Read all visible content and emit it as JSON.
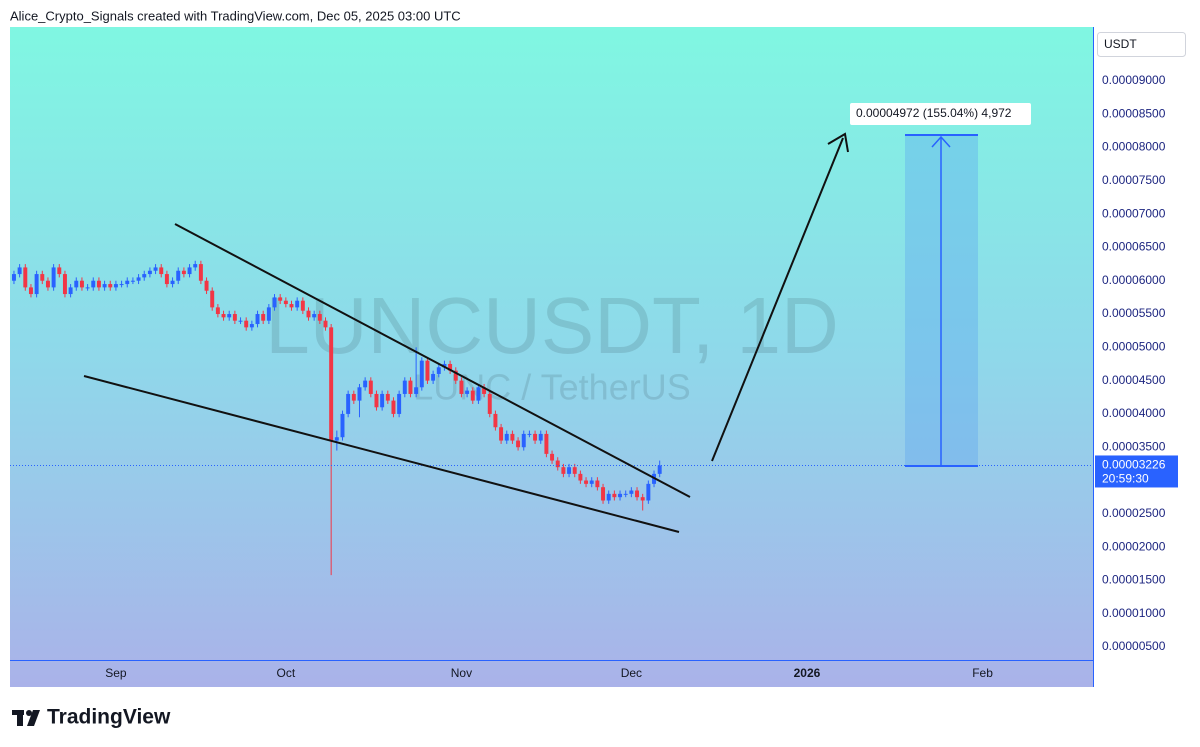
{
  "header": {
    "text": "Alice_Crypto_Signals created with TradingView.com, Dec 05, 2025 03:00 UTC"
  },
  "footer": {
    "brand": "TradingView"
  },
  "chart_data": {
    "type": "candlestick",
    "symbol": "LUNCUSDT, 1D",
    "description": "LUNC / TetherUS",
    "currency": "USDT",
    "up_color": "#2962ff",
    "down_color": "#f23645",
    "grid": false,
    "candles": [
      [
        6e-05,
        6.15e-05,
        5.95e-05,
        6.1e-05
      ],
      [
        6.1e-05,
        6.25e-05,
        6.05e-05,
        6.2e-05
      ],
      [
        6.2e-05,
        6.25e-05,
        5.85e-05,
        5.9e-05
      ],
      [
        5.9e-05,
        5.95e-05,
        5.75e-05,
        5.8e-05
      ],
      [
        5.8e-05,
        6.15e-05,
        5.75e-05,
        6.1e-05
      ],
      [
        6.1e-05,
        6.15e-05,
        5.95e-05,
        6e-05
      ],
      [
        6e-05,
        6.05e-05,
        5.85e-05,
        5.9e-05
      ],
      [
        5.9e-05,
        6.25e-05,
        5.85e-05,
        6.2e-05
      ],
      [
        6.2e-05,
        6.25e-05,
        6.05e-05,
        6.1e-05
      ],
      [
        6.1e-05,
        6.15e-05,
        5.75e-05,
        5.8e-05
      ],
      [
        5.8e-05,
        5.95e-05,
        5.75e-05,
        5.9e-05
      ],
      [
        5.9e-05,
        6.05e-05,
        5.85e-05,
        6e-05
      ],
      [
        6e-05,
        6.05e-05,
        5.85e-05,
        5.9e-05
      ],
      [
        5.9e-05,
        5.95e-05,
        5.85e-05,
        5.9e-05
      ],
      [
        5.9e-05,
        6.05e-05,
        5.85e-05,
        6e-05
      ],
      [
        6e-05,
        6.05e-05,
        5.85e-05,
        5.9e-05
      ],
      [
        5.9e-05,
        6e-05,
        5.85e-05,
        5.95e-05
      ],
      [
        5.95e-05,
        6e-05,
        5.85e-05,
        5.9e-05
      ],
      [
        5.9e-05,
        6e-05,
        5.85e-05,
        5.95e-05
      ],
      [
        5.95e-05,
        6e-05,
        5.9e-05,
        5.95e-05
      ],
      [
        5.95e-05,
        6.05e-05,
        5.9e-05,
        6e-05
      ],
      [
        6e-05,
        6.05e-05,
        5.95e-05,
        6e-05
      ],
      [
        6e-05,
        6.1e-05,
        5.95e-05,
        6.05e-05
      ],
      [
        6.05e-05,
        6.15e-05,
        6e-05,
        6.1e-05
      ],
      [
        6.1e-05,
        6.2e-05,
        6.05e-05,
        6.15e-05
      ],
      [
        6.15e-05,
        6.25e-05,
        6.1e-05,
        6.2e-05
      ],
      [
        6.2e-05,
        6.25e-05,
        6.05e-05,
        6.1e-05
      ],
      [
        6.1e-05,
        6.15e-05,
        5.9e-05,
        5.95e-05
      ],
      [
        5.95e-05,
        6.05e-05,
        5.9e-05,
        6e-05
      ],
      [
        6e-05,
        6.2e-05,
        5.95e-05,
        6.15e-05
      ],
      [
        6.15e-05,
        6.2e-05,
        6.05e-05,
        6.1e-05
      ],
      [
        6.1e-05,
        6.25e-05,
        6.05e-05,
        6.2e-05
      ],
      [
        6.2e-05,
        6.3e-05,
        6.15e-05,
        6.25e-05
      ],
      [
        6.25e-05,
        6.3e-05,
        5.95e-05,
        6e-05
      ],
      [
        6e-05,
        6.05e-05,
        5.8e-05,
        5.85e-05
      ],
      [
        5.85e-05,
        5.9e-05,
        5.55e-05,
        5.6e-05
      ],
      [
        5.6e-05,
        5.65e-05,
        5.45e-05,
        5.5e-05
      ],
      [
        5.5e-05,
        5.55e-05,
        5.4e-05,
        5.45e-05
      ],
      [
        5.45e-05,
        5.55e-05,
        5.4e-05,
        5.5e-05
      ],
      [
        5.5e-05,
        5.55e-05,
        5.35e-05,
        5.4e-05
      ],
      [
        5.4e-05,
        5.45e-05,
        5.35e-05,
        5.4e-05
      ],
      [
        5.4e-05,
        5.45e-05,
        5.25e-05,
        5.3e-05
      ],
      [
        5.3e-05,
        5.4e-05,
        5.25e-05,
        5.35e-05
      ],
      [
        5.35e-05,
        5.55e-05,
        5.3e-05,
        5.5e-05
      ],
      [
        5.5e-05,
        5.55e-05,
        5.35e-05,
        5.4e-05
      ],
      [
        5.4e-05,
        5.65e-05,
        5.35e-05,
        5.6e-05
      ],
      [
        5.6e-05,
        5.8e-05,
        5.55e-05,
        5.75e-05
      ],
      [
        5.75e-05,
        5.8e-05,
        5.65e-05,
        5.7e-05
      ],
      [
        5.7e-05,
        5.75e-05,
        5.6e-05,
        5.65e-05
      ],
      [
        5.65e-05,
        5.7e-05,
        5.55e-05,
        5.6e-05
      ],
      [
        5.6e-05,
        5.75e-05,
        5.55e-05,
        5.7e-05
      ],
      [
        5.7e-05,
        5.75e-05,
        5.5e-05,
        5.55e-05
      ],
      [
        5.55e-05,
        5.6e-05,
        5.4e-05,
        5.45e-05
      ],
      [
        5.45e-05,
        5.55e-05,
        5.4e-05,
        5.5e-05
      ],
      [
        5.5e-05,
        5.55e-05,
        5.35e-05,
        5.4e-05
      ],
      [
        5.4e-05,
        5.45e-05,
        5.25e-05,
        5.3e-05
      ],
      [
        5.3e-05,
        5.35e-05,
        1.58e-05,
        3.6e-05
      ],
      [
        3.6e-05,
        3.75e-05,
        3.45e-05,
        3.65e-05
      ],
      [
        3.65e-05,
        4.05e-05,
        3.6e-05,
        4e-05
      ],
      [
        4e-05,
        4.35e-05,
        3.95e-05,
        4.3e-05
      ],
      [
        4.3e-05,
        4.35e-05,
        4.15e-05,
        4.2e-05
      ],
      [
        4.2e-05,
        4.45e-05,
        3.95e-05,
        4.4e-05
      ],
      [
        4.4e-05,
        4.55e-05,
        4.35e-05,
        4.5e-05
      ],
      [
        4.5e-05,
        4.55e-05,
        4.25e-05,
        4.3e-05
      ],
      [
        4.3e-05,
        4.35e-05,
        4.05e-05,
        4.1e-05
      ],
      [
        4.1e-05,
        4.35e-05,
        4.05e-05,
        4.3e-05
      ],
      [
        4.3e-05,
        4.35e-05,
        4.15e-05,
        4.2e-05
      ],
      [
        4.2e-05,
        4.25e-05,
        3.95e-05,
        4e-05
      ],
      [
        4e-05,
        4.35e-05,
        3.95e-05,
        4.3e-05
      ],
      [
        4.3e-05,
        4.55e-05,
        4.25e-05,
        4.5e-05
      ],
      [
        4.5e-05,
        4.55e-05,
        4.25e-05,
        4.3e-05
      ],
      [
        4.3e-05,
        5e-05,
        4.25e-05,
        4.4e-05
      ],
      [
        4.4e-05,
        4.85e-05,
        4.35e-05,
        4.8e-05
      ],
      [
        4.8e-05,
        4.85e-05,
        4.45e-05,
        4.5e-05
      ],
      [
        4.5e-05,
        4.65e-05,
        4.45e-05,
        4.6e-05
      ],
      [
        4.6e-05,
        4.75e-05,
        4.55e-05,
        4.7e-05
      ],
      [
        4.7e-05,
        4.8e-05,
        4.65e-05,
        4.75e-05
      ],
      [
        4.75e-05,
        4.8e-05,
        4.6e-05,
        4.65e-05
      ],
      [
        4.65e-05,
        4.7e-05,
        4.45e-05,
        4.5e-05
      ],
      [
        4.5e-05,
        4.55e-05,
        4.25e-05,
        4.3e-05
      ],
      [
        4.3e-05,
        4.4e-05,
        4.25e-05,
        4.35e-05
      ],
      [
        4.35e-05,
        4.4e-05,
        4.15e-05,
        4.2e-05
      ],
      [
        4.2e-05,
        4.45e-05,
        4.15e-05,
        4.4e-05
      ],
      [
        4.4e-05,
        4.45e-05,
        4.25e-05,
        4.3e-05
      ],
      [
        4.3e-05,
        4.35e-05,
        3.95e-05,
        4e-05
      ],
      [
        4e-05,
        4.05e-05,
        3.75e-05,
        3.8e-05
      ],
      [
        3.8e-05,
        3.85e-05,
        3.55e-05,
        3.6e-05
      ],
      [
        3.6e-05,
        3.75e-05,
        3.55e-05,
        3.7e-05
      ],
      [
        3.7e-05,
        3.75e-05,
        3.55e-05,
        3.6e-05
      ],
      [
        3.6e-05,
        3.65e-05,
        3.45e-05,
        3.5e-05
      ],
      [
        3.5e-05,
        3.75e-05,
        3.45e-05,
        3.7e-05
      ],
      [
        3.7e-05,
        3.75e-05,
        3.65e-05,
        3.7e-05
      ],
      [
        3.7e-05,
        3.75e-05,
        3.55e-05,
        3.6e-05
      ],
      [
        3.6e-05,
        3.75e-05,
        3.55e-05,
        3.7e-05
      ],
      [
        3.7e-05,
        3.75e-05,
        3.35e-05,
        3.4e-05
      ],
      [
        3.4e-05,
        3.45e-05,
        3.25e-05,
        3.3e-05
      ],
      [
        3.3e-05,
        3.35e-05,
        3.15e-05,
        3.2e-05
      ],
      [
        3.2e-05,
        3.25e-05,
        3.05e-05,
        3.1e-05
      ],
      [
        3.1e-05,
        3.25e-05,
        3.05e-05,
        3.2e-05
      ],
      [
        3.2e-05,
        3.25e-05,
        3.05e-05,
        3.1e-05
      ],
      [
        3.1e-05,
        3.15e-05,
        2.95e-05,
        3e-05
      ],
      [
        3e-05,
        3.05e-05,
        2.9e-05,
        2.95e-05
      ],
      [
        2.95e-05,
        3.05e-05,
        2.9e-05,
        3e-05
      ],
      [
        3e-05,
        3.05e-05,
        2.85e-05,
        2.9e-05
      ],
      [
        2.9e-05,
        2.95e-05,
        2.65e-05,
        2.7e-05
      ],
      [
        2.7e-05,
        2.85e-05,
        2.65e-05,
        2.8e-05
      ],
      [
        2.8e-05,
        2.85e-05,
        2.7e-05,
        2.75e-05
      ],
      [
        2.75e-05,
        2.85e-05,
        2.7e-05,
        2.8e-05
      ],
      [
        2.8e-05,
        2.85e-05,
        2.75e-05,
        2.8e-05
      ],
      [
        2.8e-05,
        2.9e-05,
        2.75e-05,
        2.85e-05
      ],
      [
        2.85e-05,
        2.9e-05,
        2.7e-05,
        2.75e-05
      ],
      [
        2.75e-05,
        2.8e-05,
        2.55e-05,
        2.7e-05
      ],
      [
        2.7e-05,
        3e-05,
        2.65e-05,
        2.95e-05
      ],
      [
        2.95e-05,
        3.15e-05,
        2.9e-05,
        3.1e-05
      ],
      [
        3.1e-05,
        3.3e-05,
        3.05e-05,
        3.226e-05
      ]
    ],
    "xlim": [
      -0.7,
      190.5
    ],
    "xticks": [
      {
        "value": 18,
        "label": "Sep"
      },
      {
        "value": 48,
        "label": "Oct"
      },
      {
        "value": 79,
        "label": "Nov"
      },
      {
        "value": 109,
        "label": "Dec"
      },
      {
        "value": 140,
        "label": "2026"
      },
      {
        "value": 171,
        "label": "Feb"
      }
    ],
    "ylim": [
      3.05e-06,
      9.81e-05
    ],
    "yticks": [
      {
        "value": 5e-06,
        "label": "0.00000500"
      },
      {
        "value": 1e-05,
        "label": "0.00001000"
      },
      {
        "value": 1.5e-05,
        "label": "0.00001500"
      },
      {
        "value": 2e-05,
        "label": "0.00002000"
      },
      {
        "value": 2.5e-05,
        "label": "0.00002500"
      },
      {
        "value": 3.5e-05,
        "label": "0.00003500"
      },
      {
        "value": 4e-05,
        "label": "0.00004000"
      },
      {
        "value": 4.5e-05,
        "label": "0.00004500"
      },
      {
        "value": 5e-05,
        "label": "0.00005000"
      },
      {
        "value": 5.5e-05,
        "label": "0.00005500"
      },
      {
        "value": 6e-05,
        "label": "0.00006000"
      },
      {
        "value": 6.5e-05,
        "label": "0.00006500"
      },
      {
        "value": 7e-05,
        "label": "0.00007000"
      },
      {
        "value": 7.5e-05,
        "label": "0.00007500"
      },
      {
        "value": 8e-05,
        "label": "0.00008000"
      },
      {
        "value": 8.5e-05,
        "label": "0.00008500"
      },
      {
        "value": 9e-05,
        "label": "0.00009000"
      }
    ],
    "last_price": {
      "value": 3.226e-05,
      "label": "0.00003226"
    },
    "countdown": "20:59:30",
    "measure_label": "0.00004972 (155.04%) 4,972"
  }
}
